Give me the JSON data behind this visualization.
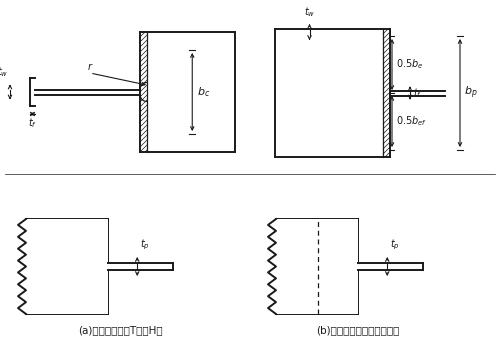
{
  "fig_width": 5.0,
  "fig_height": 3.42,
  "dpi": 100,
  "bg_color": "#ffffff",
  "line_color": "#1a1a1a",
  "caption_a": "(a)被连接截面为T形或H形",
  "caption_b": "(b)被连接截面为筱形或槽形"
}
